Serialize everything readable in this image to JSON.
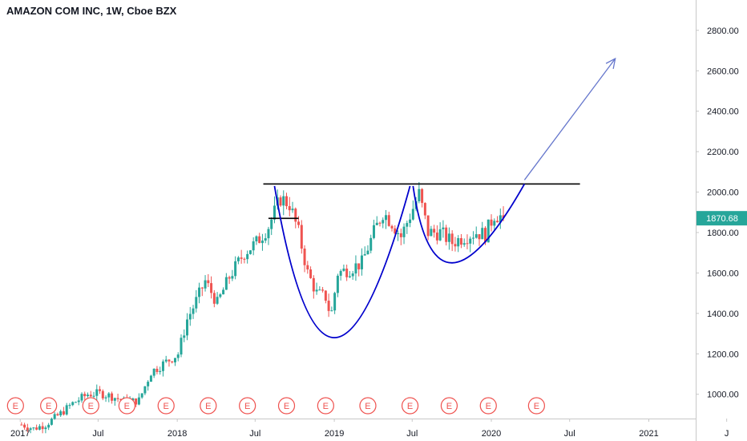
{
  "header": {
    "symbol_label": "AMAZON COM INC, 1W, Cboe BZX"
  },
  "price_tag": {
    "value": "1870.68"
  },
  "colors": {
    "up": "#26a69a",
    "down": "#ef5350",
    "pattern": "#0000cc",
    "resistance": "#000000",
    "arrow": "#6677cc",
    "axis_text": "#131722",
    "earnings": "#ef5350"
  },
  "chart_data": {
    "type": "candlestick",
    "title": "AMAZON COM INC, 1W, Cboe BZX",
    "xlabel": "",
    "ylabel": "",
    "ylim": [
      880,
      2950
    ],
    "y_ticks": [
      1000,
      1200,
      1400,
      1600,
      1800,
      2000,
      2200,
      2400,
      2600,
      2800
    ],
    "y_tick_labels": [
      "1000.00",
      "1200.00",
      "1400.00",
      "1600.00",
      "1800.00",
      "2000.00",
      "2200.00",
      "2400.00",
      "2600.00",
      "2800.00"
    ],
    "x_range": [
      "2016-11-15",
      "2021-04-20"
    ],
    "x_ticks": [
      {
        "label": "2017",
        "date": "2017-01-01"
      },
      {
        "label": "Jul",
        "date": "2017-07-01"
      },
      {
        "label": "2018",
        "date": "2018-01-01"
      },
      {
        "label": "Jul",
        "date": "2018-07-01"
      },
      {
        "label": "2019",
        "date": "2019-01-01"
      },
      {
        "label": "Jul",
        "date": "2019-07-01"
      },
      {
        "label": "2020",
        "date": "2020-01-01"
      },
      {
        "label": "Jul",
        "date": "2020-07-01"
      },
      {
        "label": "2021",
        "date": "2021-01-01"
      },
      {
        "label": "J",
        "date": "2021-07-01"
      }
    ],
    "last_price": 1870.68,
    "price_path": [
      [
        "2017-01-04",
        850
      ],
      [
        "2017-02-01",
        830
      ],
      [
        "2017-03-01",
        850
      ],
      [
        "2017-04-05",
        905
      ],
      [
        "2017-05-03",
        955
      ],
      [
        "2017-06-07",
        1000
      ],
      [
        "2017-07-05",
        1005
      ],
      [
        "2017-08-02",
        990
      ],
      [
        "2017-09-06",
        960
      ],
      [
        "2017-10-04",
        970
      ],
      [
        "2017-11-01",
        1110
      ],
      [
        "2017-12-06",
        1160
      ],
      [
        "2018-01-03",
        1200
      ],
      [
        "2018-01-24",
        1370
      ],
      [
        "2018-02-07",
        1430
      ],
      [
        "2018-03-07",
        1560
      ],
      [
        "2018-04-04",
        1450
      ],
      [
        "2018-05-02",
        1580
      ],
      [
        "2018-06-06",
        1700
      ],
      [
        "2018-07-04",
        1750
      ],
      [
        "2018-08-01",
        1830
      ],
      [
        "2018-08-29",
        1970
      ],
      [
        "2018-09-19",
        1940
      ],
      [
        "2018-10-10",
        1800
      ],
      [
        "2018-10-31",
        1600
      ],
      [
        "2018-11-21",
        1500
      ],
      [
        "2018-12-12",
        1480
      ],
      [
        "2018-12-24",
        1380
      ],
      [
        "2019-01-09",
        1600
      ],
      [
        "2019-02-06",
        1620
      ],
      [
        "2019-03-06",
        1650
      ],
      [
        "2019-04-03",
        1800
      ],
      [
        "2019-04-24",
        1900
      ],
      [
        "2019-05-15",
        1850
      ],
      [
        "2019-06-05",
        1780
      ],
      [
        "2019-07-03",
        1920
      ],
      [
        "2019-07-17",
        1990
      ],
      [
        "2019-08-07",
        1800
      ],
      [
        "2019-09-04",
        1800
      ],
      [
        "2019-10-02",
        1750
      ],
      [
        "2019-10-30",
        1780
      ],
      [
        "2019-11-27",
        1800
      ],
      [
        "2019-12-18",
        1790
      ],
      [
        "2020-01-08",
        1890
      ],
      [
        "2020-01-22",
        1880
      ],
      [
        "2020-01-29",
        1870.68
      ]
    ],
    "earnings_dates": [
      "2016-12-21",
      "2017-03-08",
      "2017-06-14",
      "2017-09-06",
      "2017-12-06",
      "2018-03-14",
      "2018-06-13",
      "2018-09-12",
      "2018-12-12",
      "2019-03-20",
      "2019-06-26",
      "2019-09-25",
      "2019-12-25",
      "2020-04-15"
    ],
    "annotations": {
      "resistance": {
        "from": "2018-07-20",
        "to": "2020-07-25",
        "y": 2040
      },
      "short_line": {
        "from": "2018-08-01",
        "to": "2018-10-10",
        "y": 1870
      },
      "arc_1": [
        [
          "2018-08-15",
          2030
        ],
        [
          "2019-01-01",
          1280
        ],
        [
          "2019-06-26",
          2030
        ]
      ],
      "arc_2": [
        [
          "2019-07-03",
          2030
        ],
        [
          "2019-10-02",
          1650
        ],
        [
          "2020-03-18",
          2040
        ]
      ],
      "arrow": {
        "from": [
          "2020-03-18",
          2060
        ],
        "to": [
          "2020-10-15",
          2660
        ]
      }
    }
  }
}
